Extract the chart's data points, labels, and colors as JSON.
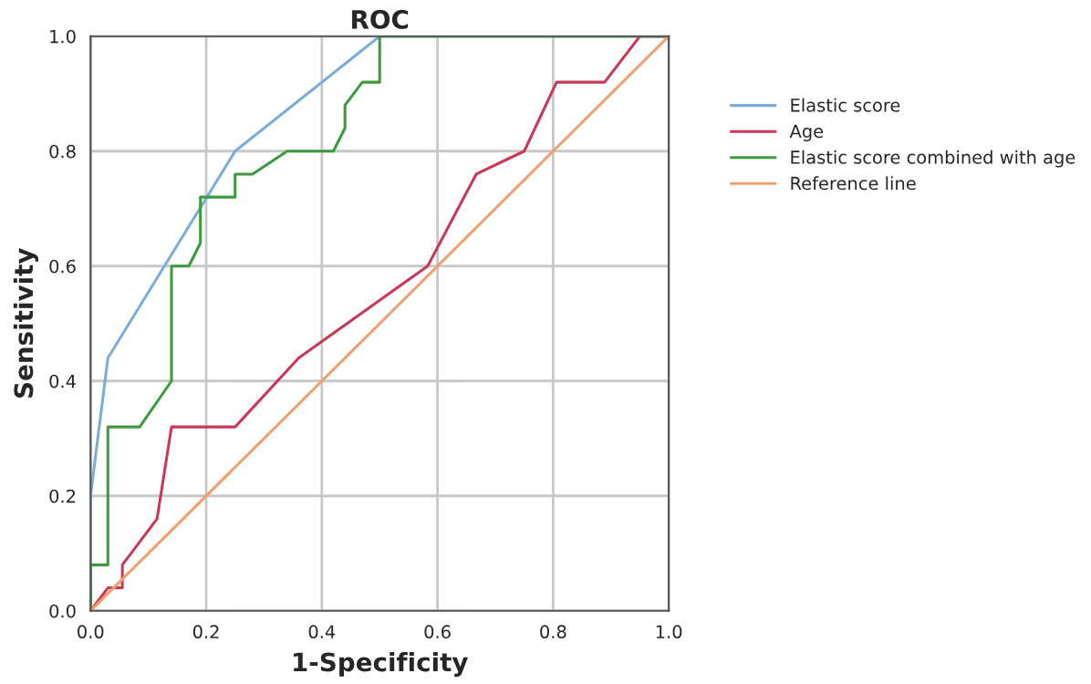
{
  "chart_data": {
    "type": "line",
    "title": "ROC",
    "xlabel": "1-Specificity",
    "ylabel": "Sensitivity",
    "xlim": [
      0,
      1
    ],
    "ylim": [
      0,
      1
    ],
    "xticks": [
      {
        "value": 0,
        "label": "0.0"
      },
      {
        "value": 0.2,
        "label": "0.2"
      },
      {
        "value": 0.4,
        "label": "0.4"
      },
      {
        "value": 0.6,
        "label": "0.6"
      },
      {
        "value": 0.8,
        "label": "0.8"
      },
      {
        "value": 1,
        "label": "1.0"
      }
    ],
    "yticks": [
      {
        "value": 0,
        "label": "0.0"
      },
      {
        "value": 0.2,
        "label": "0.2"
      },
      {
        "value": 0.4,
        "label": "0.4"
      },
      {
        "value": 0.6,
        "label": "0.6"
      },
      {
        "value": 0.8,
        "label": "0.8"
      },
      {
        "value": 1,
        "label": "1.0"
      }
    ],
    "grid": true,
    "legend": "right",
    "marker": "none",
    "line_style": "solid",
    "series": [
      {
        "name": "Elastic score",
        "color": "#7aaed8",
        "x": [
          0,
          0,
          0.03,
          0.25,
          0.5,
          1
        ],
        "values": [
          0,
          0.2,
          0.44,
          0.8,
          1,
          1
        ]
      },
      {
        "name": "Age",
        "color": "#c8385a",
        "x": [
          0,
          0.03,
          0.055,
          0.055,
          0.115,
          0.14,
          0.25,
          0.36,
          0.583,
          0.667,
          0.75,
          0.806,
          0.889,
          0.95,
          1
        ],
        "values": [
          0,
          0.04,
          0.04,
          0.08,
          0.16,
          0.32,
          0.32,
          0.44,
          0.6,
          0.76,
          0.8,
          0.92,
          0.92,
          1,
          1
        ]
      },
      {
        "name": "Elastic score combined with age",
        "color": "#3e9a3e",
        "x": [
          0,
          0,
          0.03,
          0.03,
          0.085,
          0.14,
          0.14,
          0.17,
          0.19,
          0.19,
          0.25,
          0.25,
          0.28,
          0.34,
          0.42,
          0.44,
          0.44,
          0.47,
          0.5,
          0.5,
          1
        ],
        "values": [
          0,
          0.08,
          0.08,
          0.32,
          0.32,
          0.4,
          0.6,
          0.6,
          0.64,
          0.72,
          0.72,
          0.76,
          0.76,
          0.8,
          0.8,
          0.84,
          0.88,
          0.92,
          0.92,
          1,
          1
        ]
      },
      {
        "name": "Reference line",
        "color": "#f0a070",
        "x": [
          0,
          1
        ],
        "values": [
          0,
          1
        ]
      }
    ]
  }
}
